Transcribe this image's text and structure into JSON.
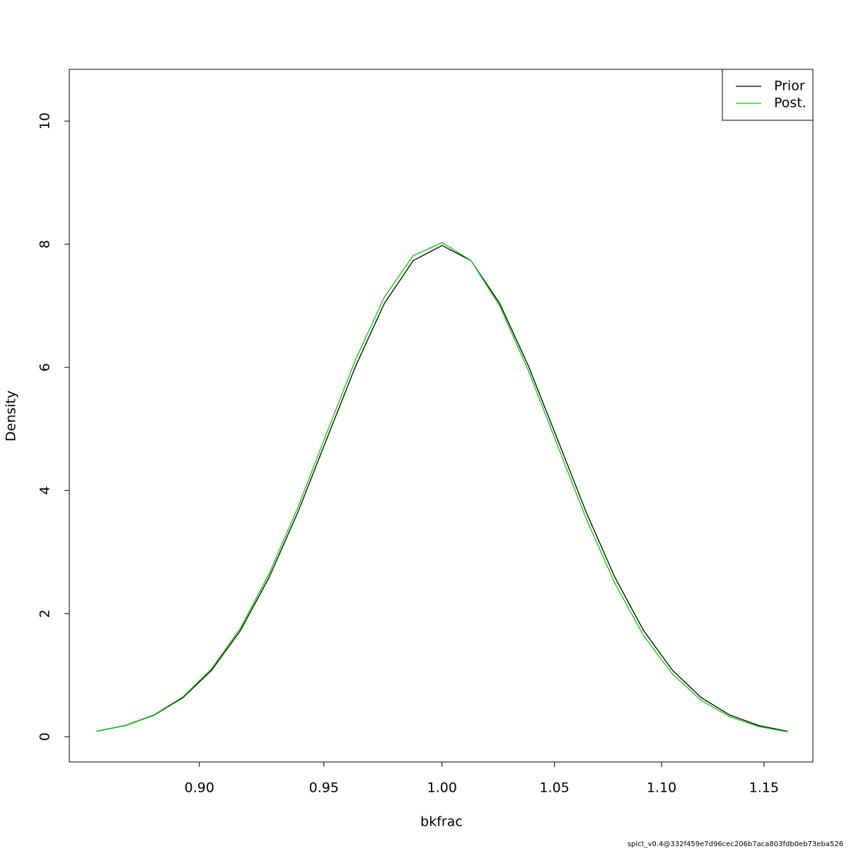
{
  "chart_data": {
    "type": "line",
    "xlabel": "bkfrac",
    "ylabel": "Density",
    "footer": "spict_v0.4@332f459e7d96cec206b7aca803fdb0eb73eba526",
    "x": [
      0.8607,
      0.8715,
      0.8825,
      0.8936,
      0.9048,
      0.9162,
      0.9277,
      0.9394,
      0.9512,
      0.9632,
      0.9753,
      0.9876,
      1.0,
      1.0126,
      1.0253,
      1.0382,
      1.0513,
      1.0645,
      1.0779,
      1.0914,
      1.1052,
      1.1191,
      1.1331,
      1.1474,
      1.1618
    ],
    "series": [
      {
        "name": "Prior",
        "color": "#000000",
        "values": [
          0.0886,
          0.182,
          0.351,
          0.635,
          1.08,
          1.726,
          2.591,
          3.653,
          4.839,
          6.023,
          7.041,
          7.734,
          7.979,
          7.734,
          7.041,
          6.023,
          4.839,
          3.653,
          2.591,
          1.726,
          1.08,
          0.635,
          0.351,
          0.182,
          0.0886
        ]
      },
      {
        "name": "Post.",
        "color": "#00cd00",
        "values": [
          0.0897,
          0.1846,
          0.357,
          0.648,
          1.104,
          1.765,
          2.65,
          3.733,
          4.937,
          6.13,
          7.143,
          7.815,
          8.025,
          7.736,
          7.0,
          5.947,
          4.741,
          3.549,
          2.493,
          1.645,
          1.018,
          0.592,
          0.323,
          0.165,
          0.0795
        ]
      }
    ],
    "xlim": [
      0.8506,
      1.1747
    ],
    "log_x": true,
    "xticks": [
      {
        "value": 0.9,
        "label": "0.90"
      },
      0.95,
      {
        "value": 1,
        "label": "1.00"
      },
      1.05,
      {
        "value": 1.1,
        "label": "1.10"
      },
      1.15
    ],
    "ylim": [
      -0.41,
      10.84
    ],
    "yticks": [
      0,
      2,
      4,
      6,
      8,
      10
    ],
    "legend": "topright"
  }
}
